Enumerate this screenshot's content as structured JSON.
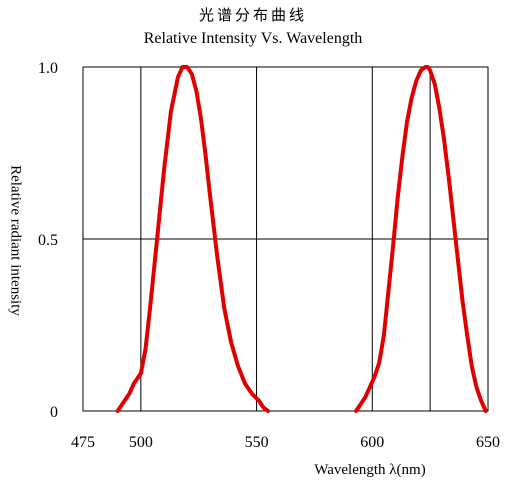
{
  "chart_data": {
    "type": "line",
    "title": "光谱分布曲线",
    "subtitle": "Relative Intensity Vs. Wavelength",
    "xlabel": "Wavelength λ(nm)",
    "ylabel": "Relative radiant intensity",
    "xlim": [
      475,
      650
    ],
    "ylim": [
      0,
      1.0
    ],
    "x_ticks": [
      "475",
      "500",
      "550",
      "600",
      "650"
    ],
    "y_ticks": [
      "0",
      "0.5",
      "1.0"
    ],
    "grid": true,
    "series_color": "#e00000",
    "series": [
      {
        "x": [
          490,
          492,
          495,
          497,
          500,
          502,
          504,
          507,
          510,
          513,
          516,
          518,
          520,
          522,
          524,
          526,
          528,
          530,
          533,
          536,
          539,
          542,
          545,
          548,
          551,
          553,
          555
        ],
        "y": [
          0,
          0.02,
          0.05,
          0.08,
          0.11,
          0.18,
          0.3,
          0.5,
          0.7,
          0.87,
          0.97,
          1.0,
          1.0,
          0.98,
          0.93,
          0.85,
          0.74,
          0.62,
          0.45,
          0.3,
          0.2,
          0.13,
          0.08,
          0.05,
          0.03,
          0.01,
          0
        ]
      },
      {
        "x": [
          593,
          595,
          597,
          599,
          601,
          603,
          605,
          607,
          609,
          611,
          613,
          615,
          617,
          619,
          621,
          623,
          624,
          625,
          627,
          629,
          631,
          633,
          635,
          637,
          639,
          641,
          643,
          645,
          647,
          649
        ],
        "y": [
          0,
          0.02,
          0.04,
          0.07,
          0.1,
          0.14,
          0.22,
          0.35,
          0.48,
          0.62,
          0.74,
          0.84,
          0.91,
          0.96,
          0.99,
          1.0,
          1.0,
          0.99,
          0.95,
          0.88,
          0.79,
          0.68,
          0.56,
          0.44,
          0.32,
          0.22,
          0.13,
          0.07,
          0.03,
          0
        ]
      }
    ]
  }
}
